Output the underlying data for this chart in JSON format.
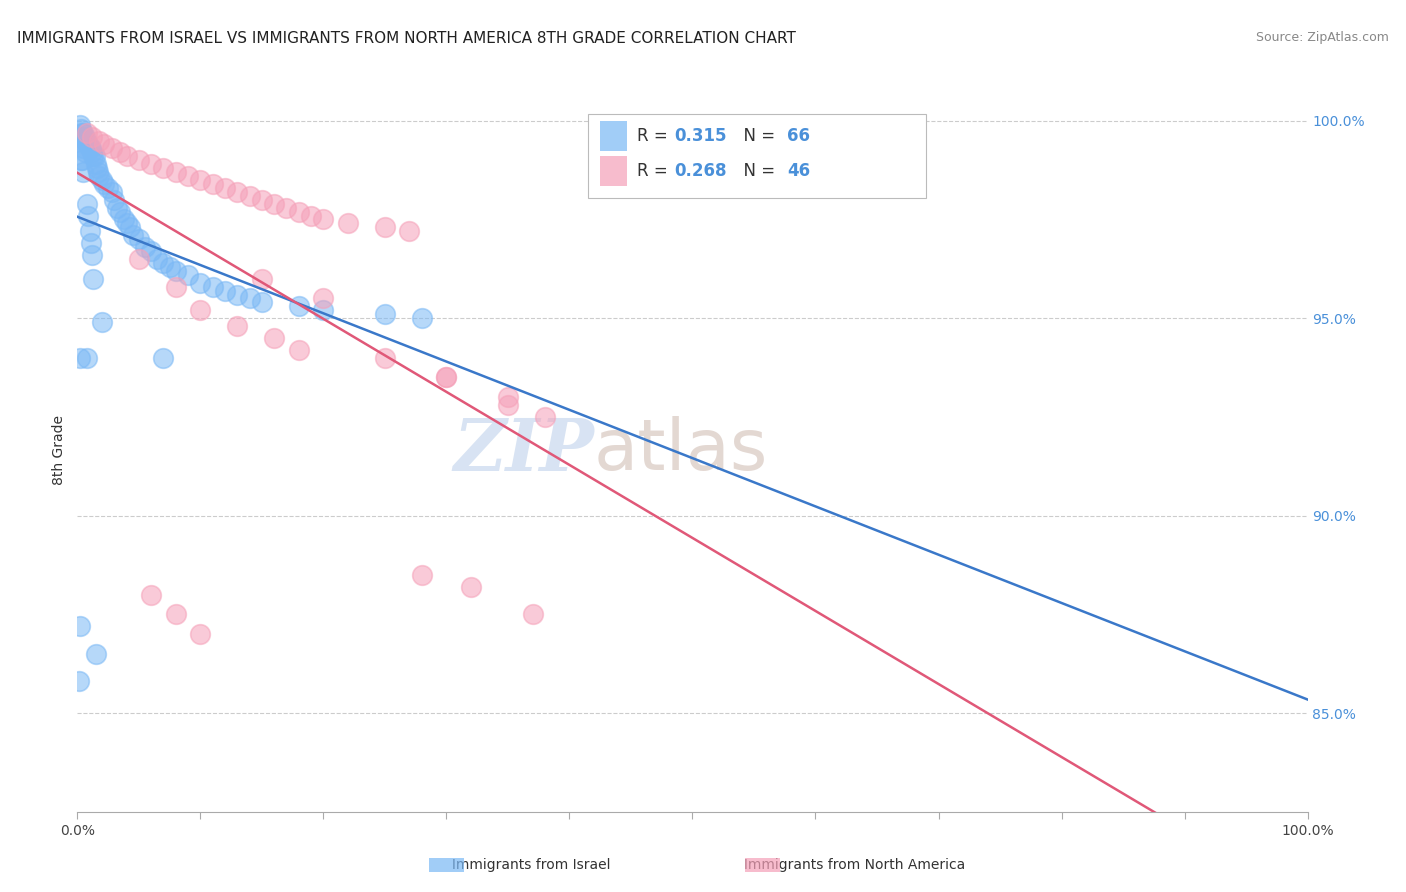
{
  "title": "IMMIGRANTS FROM ISRAEL VS IMMIGRANTS FROM NORTH AMERICA 8TH GRADE CORRELATION CHART",
  "source": "Source: ZipAtlas.com",
  "ylabel": "8th Grade",
  "watermark_zip": "ZIP",
  "watermark_atlas": "atlas",
  "legend_israel_R": "0.315",
  "legend_israel_N": "66",
  "legend_north_R": "0.268",
  "legend_north_N": "46",
  "israel_color": "#7ab8f5",
  "north_america_color": "#f5a0b8",
  "israel_line_color": "#3a78c9",
  "north_america_line_color": "#e05878",
  "background_color": "#ffffff",
  "grid_color": "#cccccc",
  "xlim": [
    0.0,
    1.0
  ],
  "ylim": [
    0.825,
    1.008
  ],
  "yticks": [
    1.0,
    0.95,
    0.9,
    0.85
  ],
  "ytick_labels": [
    "100.0%",
    "95.0%",
    "90.0%",
    "85.0%"
  ],
  "israel_x": [
    0.002,
    0.003,
    0.004,
    0.005,
    0.006,
    0.003,
    0.004,
    0.007,
    0.008,
    0.009,
    0.01,
    0.011,
    0.005,
    0.006,
    0.012,
    0.013,
    0.014,
    0.003,
    0.004,
    0.015,
    0.016,
    0.017,
    0.005,
    0.018,
    0.02,
    0.022,
    0.025,
    0.028,
    0.03,
    0.008,
    0.032,
    0.035,
    0.009,
    0.038,
    0.04,
    0.043,
    0.01,
    0.045,
    0.05,
    0.011,
    0.055,
    0.06,
    0.012,
    0.065,
    0.07,
    0.075,
    0.08,
    0.09,
    0.013,
    0.1,
    0.11,
    0.12,
    0.13,
    0.14,
    0.15,
    0.18,
    0.2,
    0.25,
    0.28,
    0.02,
    0.002,
    0.015,
    0.001,
    0.008,
    0.002,
    0.07
  ],
  "israel_y": [
    0.999,
    0.998,
    0.997,
    0.997,
    0.996,
    0.996,
    0.995,
    0.995,
    0.994,
    0.994,
    0.993,
    0.993,
    0.993,
    0.992,
    0.992,
    0.991,
    0.991,
    0.99,
    0.99,
    0.989,
    0.988,
    0.987,
    0.987,
    0.986,
    0.985,
    0.984,
    0.983,
    0.982,
    0.98,
    0.979,
    0.978,
    0.977,
    0.976,
    0.975,
    0.974,
    0.973,
    0.972,
    0.971,
    0.97,
    0.969,
    0.968,
    0.967,
    0.966,
    0.965,
    0.964,
    0.963,
    0.962,
    0.961,
    0.96,
    0.959,
    0.958,
    0.957,
    0.956,
    0.955,
    0.954,
    0.953,
    0.952,
    0.951,
    0.95,
    0.949,
    0.872,
    0.865,
    0.858,
    0.94,
    0.94,
    0.94
  ],
  "north_x": [
    0.008,
    0.012,
    0.018,
    0.022,
    0.028,
    0.035,
    0.04,
    0.05,
    0.06,
    0.07,
    0.08,
    0.09,
    0.1,
    0.11,
    0.12,
    0.13,
    0.14,
    0.15,
    0.16,
    0.17,
    0.18,
    0.19,
    0.2,
    0.22,
    0.25,
    0.27,
    0.15,
    0.2,
    0.05,
    0.08,
    0.1,
    0.13,
    0.16,
    0.18,
    0.06,
    0.08,
    0.1,
    0.3,
    0.35,
    0.38,
    0.28,
    0.32,
    0.25,
    0.3,
    0.35,
    0.37
  ],
  "north_y": [
    0.997,
    0.996,
    0.995,
    0.994,
    0.993,
    0.992,
    0.991,
    0.99,
    0.989,
    0.988,
    0.987,
    0.986,
    0.985,
    0.984,
    0.983,
    0.982,
    0.981,
    0.98,
    0.979,
    0.978,
    0.977,
    0.976,
    0.975,
    0.974,
    0.973,
    0.972,
    0.96,
    0.955,
    0.965,
    0.958,
    0.952,
    0.948,
    0.945,
    0.942,
    0.88,
    0.875,
    0.87,
    0.935,
    0.93,
    0.925,
    0.885,
    0.882,
    0.94,
    0.935,
    0.928,
    0.875
  ]
}
